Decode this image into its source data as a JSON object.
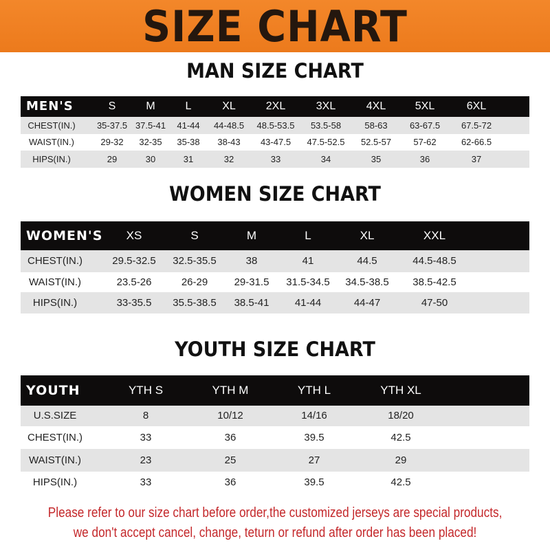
{
  "banner": {
    "title": "SIZE CHART",
    "color": "#ef801f"
  },
  "men": {
    "title": "MAN SIZE CHART",
    "header": [
      "MEN'S",
      "S",
      "M",
      "L",
      "XL",
      "2XL",
      "3XL",
      "4XL",
      "5XL",
      "6XL"
    ],
    "rows": [
      [
        "CHEST(IN.)",
        "35-37.5",
        "37.5-41",
        "41-44",
        "44-48.5",
        "48.5-53.5",
        "53.5-58",
        "58-63",
        "63-67.5",
        "67.5-72"
      ],
      [
        "WAIST(IN.)",
        "29-32",
        "32-35",
        "35-38",
        "38-43",
        "43-47.5",
        "47.5-52.5",
        "52.5-57",
        "57-62",
        "62-66.5"
      ],
      [
        "HIPS(IN.)",
        "29",
        "30",
        "31",
        "32",
        "33",
        "34",
        "35",
        "36",
        "37"
      ]
    ]
  },
  "women": {
    "title": "WOMEN SIZE CHART",
    "header": [
      "WOMEN'S",
      "XS",
      "S",
      "M",
      "L",
      "XL",
      "XXL"
    ],
    "rows": [
      [
        "CHEST(IN.)",
        "29.5-32.5",
        "32.5-35.5",
        "38",
        "41",
        "44.5",
        "44.5-48.5"
      ],
      [
        "WAIST(IN.)",
        "23.5-26",
        "26-29",
        "29-31.5",
        "31.5-34.5",
        "34.5-38.5",
        "38.5-42.5"
      ],
      [
        "HIPS(IN.)",
        "33-35.5",
        "35.5-38.5",
        "38.5-41",
        "41-44",
        "44-47",
        "47-50"
      ]
    ]
  },
  "youth": {
    "title": "YOUTH SIZE CHART",
    "header": [
      "YOUTH",
      "YTH S",
      "YTH M",
      "YTH L",
      "YTH XL"
    ],
    "rows": [
      [
        "U.S.SIZE",
        "8",
        "10/12",
        "14/16",
        "18/20"
      ],
      [
        "CHEST(IN.)",
        "33",
        "36",
        "39.5",
        "42.5"
      ],
      [
        "WAIST(IN.)",
        "23",
        "25",
        "27",
        "29"
      ],
      [
        "HIPS(IN.)",
        "33",
        "36",
        "39.5",
        "42.5"
      ]
    ]
  },
  "footer": {
    "line1": "Please refer to our size chart before order,the customized jerseys are special products,",
    "line2": "we don't accept cancel, change, teturn or refund after order has been placed!",
    "color": "#c4282b"
  }
}
